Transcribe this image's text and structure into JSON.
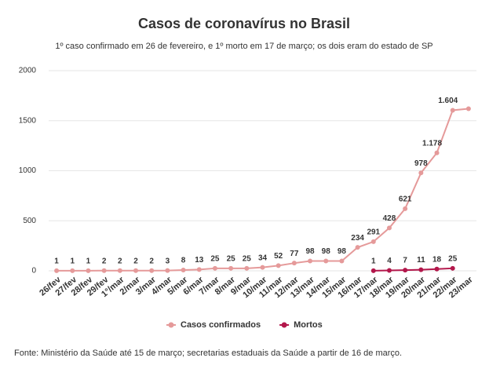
{
  "chart_data": {
    "type": "line",
    "title": "Casos de coronavírus no Brasil",
    "subtitle": "1º caso confirmado em 26 de fevereiro, e 1º morto em 17 de março; os dois eram do estado de SP",
    "source": "Fonte: Ministério da Saúde até 15 de março; secretarias estaduais da Saúde a partir de 16 de março.",
    "categories": [
      "26/fev",
      "27/fev",
      "28/fev",
      "29/fev",
      "1°/mar",
      "2/mar",
      "3/mar",
      "4/mar",
      "5/mar",
      "6/mar",
      "7/mar",
      "8/mar",
      "9/mar",
      "10/mar",
      "11/mar",
      "12/mar",
      "13/mar",
      "14/mar",
      "15/mar",
      "16/mar",
      "17/mar",
      "18/mar",
      "19/mar",
      "20/mar",
      "21/mar",
      "22/mar",
      "23/mar"
    ],
    "series": [
      {
        "name": "Casos confirmados",
        "color": "#e59a9a",
        "values": [
          1,
          1,
          1,
          2,
          2,
          2,
          2,
          3,
          8,
          13,
          25,
          25,
          25,
          34,
          52,
          77,
          98,
          98,
          98,
          234,
          291,
          428,
          621,
          978,
          1178,
          1604,
          1620
        ],
        "value_labels": [
          "1",
          "1",
          "1",
          "2",
          "2",
          "2",
          "2",
          "3",
          "8",
          "13",
          "25",
          "25",
          "25",
          "34",
          "52",
          "77",
          "98",
          "98",
          "98",
          "234",
          "291",
          "428",
          "621",
          "978",
          "1.178",
          "1.604",
          null
        ]
      },
      {
        "name": "Mortos",
        "color": "#b3174b",
        "values": [
          null,
          null,
          null,
          null,
          null,
          null,
          null,
          null,
          null,
          null,
          null,
          null,
          null,
          null,
          null,
          null,
          null,
          null,
          null,
          null,
          1,
          4,
          7,
          11,
          18,
          25,
          null
        ]
      }
    ],
    "ylim": [
      0,
      2000
    ],
    "yticks": [
      0,
      500,
      1000,
      1500,
      2000
    ],
    "grid": true,
    "legend": "bottom"
  }
}
